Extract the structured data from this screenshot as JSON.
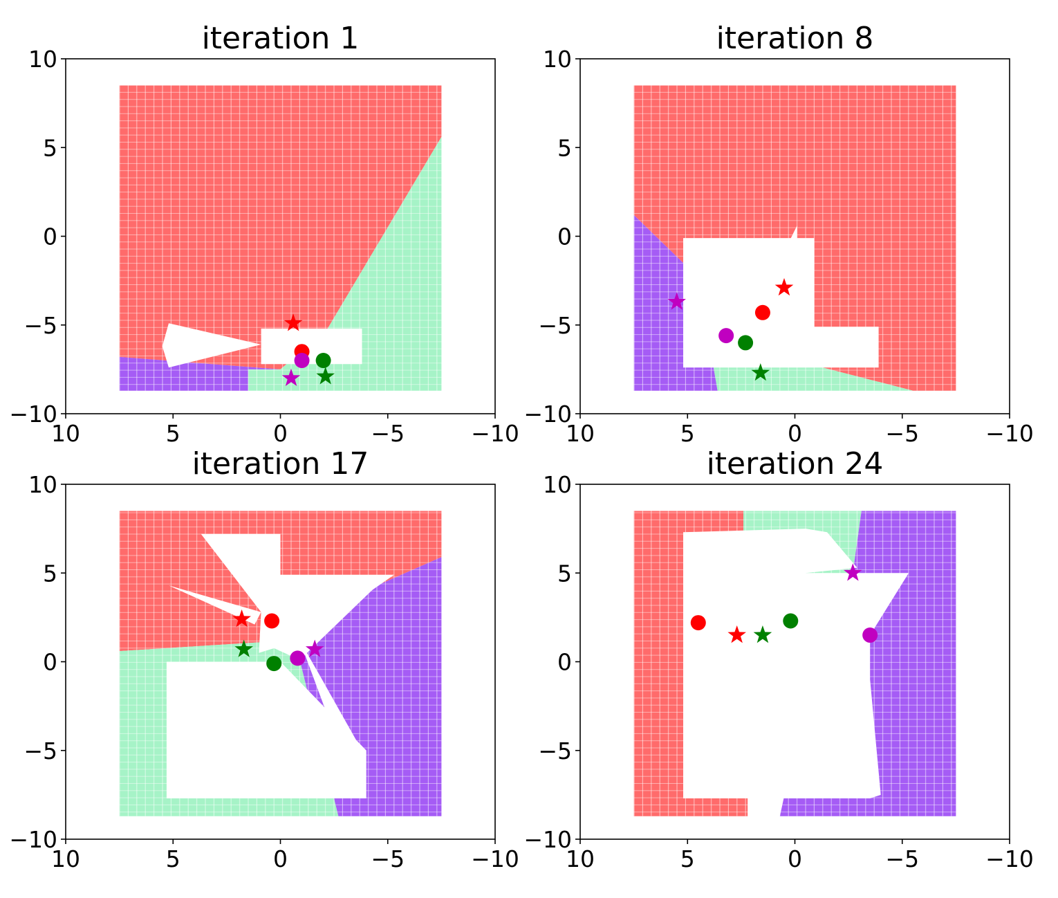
{
  "figure": {
    "colors": {
      "red": "#ff0000",
      "green": "#008000",
      "magenta": "#c000c0",
      "region_red": "#ff6b6b",
      "region_green": "#a6f3c7",
      "region_purple": "#a55cf5"
    }
  },
  "chart_data": [
    {
      "type": "scatter",
      "title": "iteration 1",
      "xlim": [
        10,
        -10
      ],
      "ylim": [
        -10,
        10
      ],
      "xticks": [
        10,
        5,
        0,
        -5,
        -10
      ],
      "yticks": [
        -10,
        -5,
        0,
        5,
        10
      ],
      "xtick_labels": [
        "10",
        "5",
        "0",
        "−5",
        "−10"
      ],
      "ytick_labels": [
        "−10",
        "−5",
        "0",
        "5",
        "10"
      ],
      "regions": [
        {
          "color": "red",
          "points": [
            [
              7.5,
              8.5
            ],
            [
              -7.5,
              8.5
            ],
            [
              -7.5,
              5.6
            ],
            [
              -2.2,
              -5.2
            ],
            [
              0,
              -7.5
            ],
            [
              7.5,
              -6.8
            ]
          ]
        },
        {
          "color": "green",
          "points": [
            [
              -7.5,
              5.6
            ],
            [
              -7.5,
              -8.7
            ],
            [
              1.5,
              -8.7
            ],
            [
              1.5,
              -7.5
            ],
            [
              0,
              -7.5
            ],
            [
              -2.2,
              -5.2
            ]
          ]
        },
        {
          "color": "purple",
          "points": [
            [
              7.5,
              -6.8
            ],
            [
              0,
              -7.5
            ],
            [
              1.5,
              -7.5
            ],
            [
              1.5,
              -8.7
            ],
            [
              7.5,
              -8.7
            ]
          ]
        }
      ],
      "free_space": [
        [
          [
            0.9,
            -5.2
          ],
          [
            -3.8,
            -5.2
          ],
          [
            -3.8,
            -7.2
          ],
          [
            0.9,
            -7.2
          ]
        ],
        [
          [
            5.2,
            -4.9
          ],
          [
            0.9,
            -6.1
          ],
          [
            5.2,
            -7.4
          ],
          [
            5.5,
            -6.2
          ]
        ]
      ],
      "markers": [
        {
          "color": "red",
          "shape": "circle",
          "x": -1.0,
          "y": -6.5
        },
        {
          "color": "magenta",
          "shape": "circle",
          "x": -1.0,
          "y": -7.0
        },
        {
          "color": "green",
          "shape": "circle",
          "x": -2.0,
          "y": -7.0
        },
        {
          "color": "red",
          "shape": "star",
          "x": -0.6,
          "y": -4.9
        },
        {
          "color": "magenta",
          "shape": "star",
          "x": -0.5,
          "y": -8.0
        },
        {
          "color": "green",
          "shape": "star",
          "x": -2.1,
          "y": -7.9
        }
      ]
    },
    {
      "type": "scatter",
      "title": "iteration 8",
      "xlim": [
        10,
        -10
      ],
      "ylim": [
        -10,
        10
      ],
      "xticks": [
        10,
        5,
        0,
        -5,
        -10
      ],
      "yticks": [
        -10,
        -5,
        0,
        5,
        10
      ],
      "xtick_labels": [
        "10",
        "5",
        "0",
        "−5",
        "−10"
      ],
      "ytick_labels": [
        "−10",
        "−5",
        "0",
        "5",
        "10"
      ],
      "regions": [
        {
          "color": "red",
          "points": [
            [
              7.5,
              8.5
            ],
            [
              -7.5,
              8.5
            ],
            [
              -7.5,
              -8.7
            ],
            [
              -5.5,
              -8.7
            ],
            [
              1.6,
              -6.5
            ],
            [
              3.8,
              -7.3
            ],
            [
              5.2,
              -1.5
            ],
            [
              7.5,
              1.2
            ]
          ]
        },
        {
          "color": "purple",
          "points": [
            [
              7.5,
              1.2
            ],
            [
              5.2,
              -1.5
            ],
            [
              3.8,
              -7.3
            ],
            [
              3.6,
              -8.7
            ],
            [
              7.5,
              -8.7
            ]
          ]
        },
        {
          "color": "green",
          "points": [
            [
              3.8,
              -7.3
            ],
            [
              1.6,
              -6.5
            ],
            [
              -5.5,
              -8.7
            ],
            [
              3.6,
              -8.7
            ]
          ]
        }
      ],
      "free_space": [
        [
          [
            5.2,
            -0.1
          ],
          [
            -0.9,
            -0.1
          ],
          [
            -0.9,
            -5.1
          ],
          [
            -3.9,
            -5.1
          ],
          [
            -3.9,
            -7.4
          ],
          [
            5.2,
            -7.4
          ]
        ],
        [
          [
            -0.1,
            -0.1
          ],
          [
            -0.1,
            0.6
          ],
          [
            1.6,
            -3.6
          ],
          [
            0.9,
            -2.0
          ]
        ]
      ],
      "markers": [
        {
          "color": "red",
          "shape": "circle",
          "x": 1.5,
          "y": -4.3
        },
        {
          "color": "magenta",
          "shape": "circle",
          "x": 3.2,
          "y": -5.6
        },
        {
          "color": "green",
          "shape": "circle",
          "x": 2.3,
          "y": -6.0
        },
        {
          "color": "red",
          "shape": "star",
          "x": 0.5,
          "y": -2.9
        },
        {
          "color": "magenta",
          "shape": "star",
          "x": 5.5,
          "y": -3.7
        },
        {
          "color": "green",
          "shape": "star",
          "x": 1.6,
          "y": -7.7
        }
      ]
    },
    {
      "type": "scatter",
      "title": "iteration 17",
      "xlim": [
        10,
        -10
      ],
      "ylim": [
        -10,
        10
      ],
      "xticks": [
        10,
        5,
        0,
        -5,
        -10
      ],
      "yticks": [
        -10,
        -5,
        0,
        5,
        10
      ],
      "xtick_labels": [
        "10",
        "5",
        "0",
        "−5",
        "−10"
      ],
      "ytick_labels": [
        "−10",
        "−5",
        "0",
        "5",
        "10"
      ],
      "regions": [
        {
          "color": "red",
          "points": [
            [
              7.5,
              8.5
            ],
            [
              -7.5,
              8.5
            ],
            [
              -7.5,
              5.9
            ],
            [
              -4.5,
              4.3
            ],
            [
              0.9,
              1.1
            ],
            [
              7.5,
              0.6
            ]
          ]
        },
        {
          "color": "purple",
          "points": [
            [
              -7.5,
              5.9
            ],
            [
              -7.5,
              -8.7
            ],
            [
              -2.7,
              -8.7
            ],
            [
              -0.9,
              0.1
            ],
            [
              -4.5,
              4.3
            ]
          ]
        },
        {
          "color": "green",
          "points": [
            [
              7.5,
              0.6
            ],
            [
              0.9,
              1.1
            ],
            [
              -0.9,
              0.1
            ],
            [
              -2.7,
              -8.7
            ],
            [
              7.5,
              -8.7
            ]
          ]
        }
      ],
      "free_space": [
        [
          [
            5.3,
            0.0
          ],
          [
            0.0,
            0.0
          ],
          [
            -4.0,
            -5.0
          ],
          [
            -4.0,
            -7.7
          ],
          [
            5.3,
            -7.7
          ]
        ],
        [
          [
            3.7,
            7.2
          ],
          [
            0.0,
            7.2
          ],
          [
            0.0,
            4.9
          ],
          [
            -5.3,
            4.9
          ],
          [
            -0.9,
            1.2
          ],
          [
            1.0,
            0.5
          ],
          [
            0.9,
            2.8
          ]
        ],
        [
          [
            0.9,
            2.8
          ],
          [
            5.2,
            4.3
          ],
          [
            1.2,
            2.1
          ]
        ],
        [
          [
            -0.9,
            1.2
          ],
          [
            -1.8,
            -0.7
          ],
          [
            -3.8,
            -5.0
          ],
          [
            -2.8,
            -5.0
          ]
        ]
      ],
      "markers": [
        {
          "color": "red",
          "shape": "circle",
          "x": 0.4,
          "y": 2.3
        },
        {
          "color": "magenta",
          "shape": "circle",
          "x": -0.8,
          "y": 0.2
        },
        {
          "color": "green",
          "shape": "circle",
          "x": 0.3,
          "y": -0.1
        },
        {
          "color": "red",
          "shape": "star",
          "x": 1.8,
          "y": 2.4
        },
        {
          "color": "magenta",
          "shape": "star",
          "x": -1.6,
          "y": 0.7
        },
        {
          "color": "green",
          "shape": "star",
          "x": 1.7,
          "y": 0.7
        }
      ]
    },
    {
      "type": "scatter",
      "title": "iteration 24",
      "xlim": [
        10,
        -10
      ],
      "ylim": [
        -10,
        10
      ],
      "xticks": [
        10,
        5,
        0,
        -5,
        -10
      ],
      "yticks": [
        -10,
        -5,
        0,
        5,
        10
      ],
      "xtick_labels": [
        "10",
        "5",
        "0",
        "−5",
        "−10"
      ],
      "ytick_labels": [
        "−10",
        "−5",
        "0",
        "5",
        "10"
      ],
      "regions": [
        {
          "color": "red",
          "points": [
            [
              7.5,
              8.5
            ],
            [
              2.4,
              8.5
            ],
            [
              2.4,
              7.5
            ],
            [
              2.2,
              2.1
            ],
            [
              2.2,
              -8.7
            ],
            [
              7.5,
              -8.7
            ]
          ]
        },
        {
          "color": "green",
          "points": [
            [
              2.4,
              8.5
            ],
            [
              -3.1,
              8.5
            ],
            [
              -2.7,
              5.0
            ],
            [
              -0.5,
              3.5
            ],
            [
              0.8,
              0.0
            ],
            [
              2.2,
              2.1
            ],
            [
              2.4,
              7.5
            ]
          ]
        },
        {
          "color": "purple",
          "points": [
            [
              -3.1,
              8.5
            ],
            [
              -7.5,
              8.5
            ],
            [
              -7.5,
              -8.7
            ],
            [
              0.7,
              -8.7
            ],
            [
              -0.5,
              -2.0
            ],
            [
              -2.7,
              5.0
            ]
          ]
        }
      ],
      "free_space": [
        [
          [
            5.2,
            7.3
          ],
          [
            -0.5,
            7.5
          ],
          [
            -0.5,
            5.0
          ],
          [
            -5.3,
            5.0
          ],
          [
            -3.5,
            1.5
          ],
          [
            -3.5,
            -1.0
          ],
          [
            -4.0,
            -7.5
          ],
          [
            -3.5,
            -7.7
          ],
          [
            5.2,
            -7.7
          ]
        ],
        [
          [
            -0.5,
            5.0
          ],
          [
            -0.5,
            7.5
          ],
          [
            -1.5,
            7.3
          ],
          [
            -2.9,
            5.3
          ]
        ]
      ],
      "markers": [
        {
          "color": "red",
          "shape": "circle",
          "x": 4.5,
          "y": 2.2
        },
        {
          "color": "magenta",
          "shape": "circle",
          "x": -3.5,
          "y": 1.5
        },
        {
          "color": "green",
          "shape": "circle",
          "x": 0.2,
          "y": 2.3
        },
        {
          "color": "red",
          "shape": "star",
          "x": 2.7,
          "y": 1.5
        },
        {
          "color": "magenta",
          "shape": "star",
          "x": -2.7,
          "y": 5.0
        },
        {
          "color": "green",
          "shape": "star",
          "x": 1.5,
          "y": 1.5
        }
      ]
    }
  ]
}
